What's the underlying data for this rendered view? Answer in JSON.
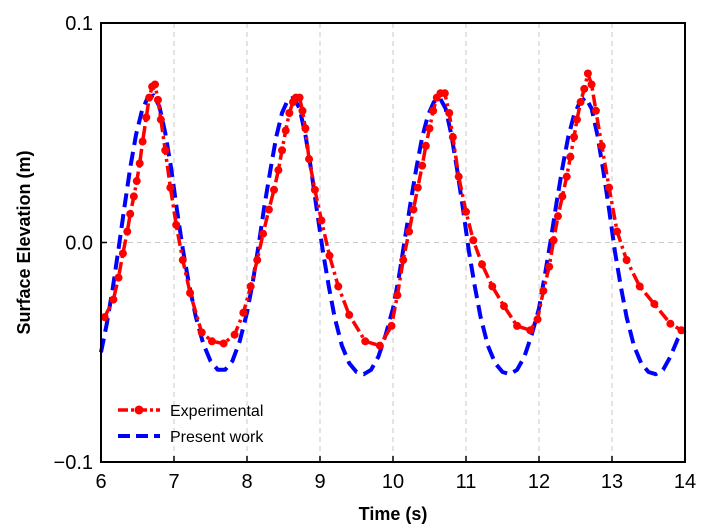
{
  "chart_data": {
    "type": "line",
    "title": "",
    "xlabel": "Time (s)",
    "ylabel": "Surface Elevation (m)",
    "xlim": [
      6,
      14
    ],
    "ylim": [
      -0.1,
      0.1
    ],
    "x_ticks": [
      6,
      7,
      8,
      9,
      10,
      11,
      12,
      13,
      14
    ],
    "x_tick_labels": [
      "6",
      "7",
      "8",
      "9",
      "10",
      "11",
      "12",
      "13",
      "14"
    ],
    "y_ticks": [
      -0.1,
      0.0,
      0.1
    ],
    "y_tick_labels": [
      "−0.1",
      "0.0",
      "0.1"
    ],
    "grid": true,
    "legend_position": "bottom-left",
    "series": [
      {
        "name": "Experimental",
        "color": "#ff0000",
        "style": "dash-dot-with-circle-markers",
        "x": [
          6.05,
          6.17,
          6.24,
          6.3,
          6.36,
          6.4,
          6.45,
          6.49,
          6.53,
          6.57,
          6.62,
          6.66,
          6.7,
          6.74,
          6.78,
          6.82,
          6.88,
          6.95,
          7.03,
          7.12,
          7.22,
          7.38,
          7.52,
          7.68,
          7.83,
          7.95,
          8.05,
          8.14,
          8.22,
          8.3,
          8.37,
          8.43,
          8.48,
          8.53,
          8.58,
          8.63,
          8.67,
          8.72,
          8.76,
          8.8,
          8.85,
          8.93,
          9.02,
          9.13,
          9.25,
          9.4,
          9.62,
          9.82,
          9.98,
          10.06,
          10.14,
          10.22,
          10.28,
          10.34,
          10.4,
          10.45,
          10.5,
          10.55,
          10.6,
          10.65,
          10.71,
          10.77,
          10.82,
          10.9,
          11.0,
          11.1,
          11.22,
          11.36,
          11.52,
          11.7,
          11.88,
          11.98,
          12.06,
          12.14,
          12.2,
          12.26,
          12.32,
          12.38,
          12.43,
          12.48,
          12.52,
          12.57,
          12.62,
          12.67,
          12.72,
          12.78,
          12.86,
          12.96,
          13.07,
          13.2,
          13.38,
          13.58,
          13.8,
          13.95
        ],
        "y": [
          -0.034,
          -0.026,
          -0.016,
          -0.005,
          0.005,
          0.013,
          0.021,
          0.028,
          0.036,
          0.046,
          0.057,
          0.066,
          0.071,
          0.072,
          0.065,
          0.056,
          0.042,
          0.025,
          0.008,
          -0.008,
          -0.023,
          -0.041,
          -0.045,
          -0.046,
          -0.042,
          -0.032,
          -0.02,
          -0.008,
          0.004,
          0.015,
          0.024,
          0.033,
          0.042,
          0.051,
          0.059,
          0.064,
          0.066,
          0.066,
          0.06,
          0.052,
          0.038,
          0.024,
          0.01,
          -0.006,
          -0.02,
          -0.033,
          -0.045,
          -0.047,
          -0.038,
          -0.024,
          -0.008,
          0.005,
          0.015,
          0.025,
          0.035,
          0.044,
          0.052,
          0.06,
          0.066,
          0.068,
          0.068,
          0.059,
          0.048,
          0.03,
          0.014,
          0.001,
          -0.01,
          -0.02,
          -0.029,
          -0.038,
          -0.04,
          -0.035,
          -0.022,
          -0.011,
          0.001,
          0.012,
          0.021,
          0.03,
          0.039,
          0.048,
          0.056,
          0.064,
          0.07,
          0.077,
          0.072,
          0.06,
          0.044,
          0.025,
          0.005,
          -0.008,
          -0.02,
          -0.028,
          -0.037,
          -0.04
        ]
      },
      {
        "name": "Present work",
        "color": "#0000ff",
        "style": "dashed",
        "x": [
          6.0,
          6.08,
          6.16,
          6.24,
          6.32,
          6.4,
          6.48,
          6.56,
          6.64,
          6.72,
          6.8,
          6.88,
          6.96,
          7.04,
          7.12,
          7.2,
          7.3,
          7.4,
          7.5,
          7.6,
          7.7,
          7.8,
          7.9,
          8.0,
          8.08,
          8.16,
          8.24,
          8.32,
          8.4,
          8.48,
          8.56,
          8.64,
          8.72,
          8.8,
          8.88,
          8.96,
          9.04,
          9.12,
          9.2,
          9.3,
          9.4,
          9.5,
          9.6,
          9.7,
          9.8,
          9.9,
          10.0,
          10.08,
          10.16,
          10.24,
          10.32,
          10.4,
          10.48,
          10.56,
          10.64,
          10.72,
          10.8,
          10.88,
          10.96,
          11.04,
          11.12,
          11.2,
          11.3,
          11.4,
          11.5,
          11.6,
          11.7,
          11.8,
          11.9,
          12.0,
          12.08,
          12.16,
          12.24,
          12.32,
          12.4,
          12.48,
          12.56,
          12.64,
          12.72,
          12.8,
          12.88,
          12.96,
          13.04,
          13.12,
          13.2,
          13.3,
          13.4,
          13.5,
          13.6,
          13.7,
          13.8,
          13.9,
          14.0
        ],
        "y": [
          -0.05,
          -0.037,
          -0.021,
          -0.003,
          0.016,
          0.034,
          0.049,
          0.06,
          0.066,
          0.067,
          0.062,
          0.05,
          0.034,
          0.015,
          -0.003,
          -0.018,
          -0.034,
          -0.046,
          -0.054,
          -0.058,
          -0.058,
          -0.054,
          -0.045,
          -0.032,
          -0.018,
          -0.001,
          0.017,
          0.033,
          0.048,
          0.059,
          0.065,
          0.066,
          0.061,
          0.049,
          0.033,
          0.014,
          -0.004,
          -0.02,
          -0.034,
          -0.047,
          -0.055,
          -0.059,
          -0.06,
          -0.058,
          -0.052,
          -0.042,
          -0.03,
          -0.016,
          0.001,
          0.018,
          0.034,
          0.048,
          0.058,
          0.064,
          0.066,
          0.061,
          0.049,
          0.033,
          0.015,
          -0.004,
          -0.02,
          -0.034,
          -0.047,
          -0.055,
          -0.059,
          -0.06,
          -0.058,
          -0.052,
          -0.042,
          -0.03,
          -0.015,
          0.001,
          0.018,
          0.034,
          0.048,
          0.058,
          0.064,
          0.066,
          0.061,
          0.049,
          0.033,
          0.015,
          -0.004,
          -0.02,
          -0.034,
          -0.047,
          -0.055,
          -0.059,
          -0.06,
          -0.058,
          -0.052,
          -0.044,
          -0.04
        ]
      }
    ]
  }
}
